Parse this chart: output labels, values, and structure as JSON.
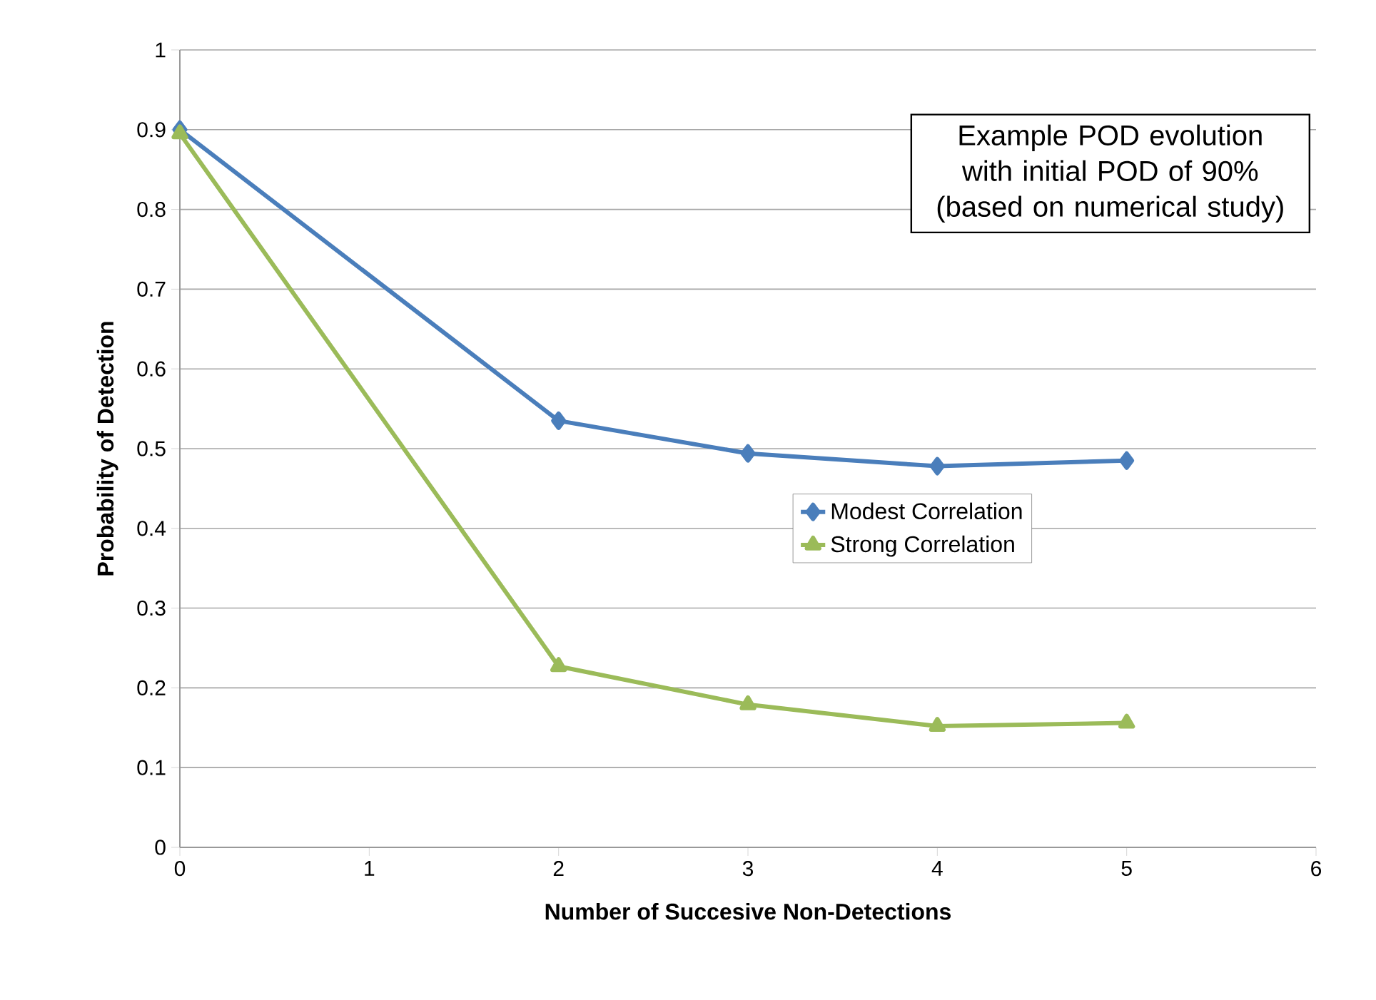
{
  "chart_data": {
    "type": "line",
    "xlabel": "Number of Succesive Non-Detections",
    "ylabel": "Probability of Detection",
    "annotations": [
      "Example POD evolution with initial POD of 90% (based on numerical study)"
    ],
    "x": [
      0,
      2,
      3,
      4,
      5
    ],
    "series": [
      {
        "name": "Modest Correlation",
        "color": "#4a7ebb",
        "marker": "diamond",
        "values": [
          0.9,
          0.535,
          0.494,
          0.478,
          0.485
        ]
      },
      {
        "name": "Strong Correlation",
        "color": "#9bbb59",
        "marker": "triangle",
        "values": [
          0.895,
          0.227,
          0.179,
          0.152,
          0.156
        ]
      }
    ],
    "xlim": [
      0,
      6
    ],
    "xticks": [
      0,
      1,
      2,
      3,
      4,
      5,
      6
    ],
    "ylim": [
      0,
      1
    ],
    "yticks": [
      0,
      0.1,
      0.2,
      0.3,
      0.4,
      0.5,
      0.6,
      0.7,
      0.8,
      0.9,
      1
    ],
    "grid": "y",
    "legend": "right",
    "line_style": "solid"
  }
}
